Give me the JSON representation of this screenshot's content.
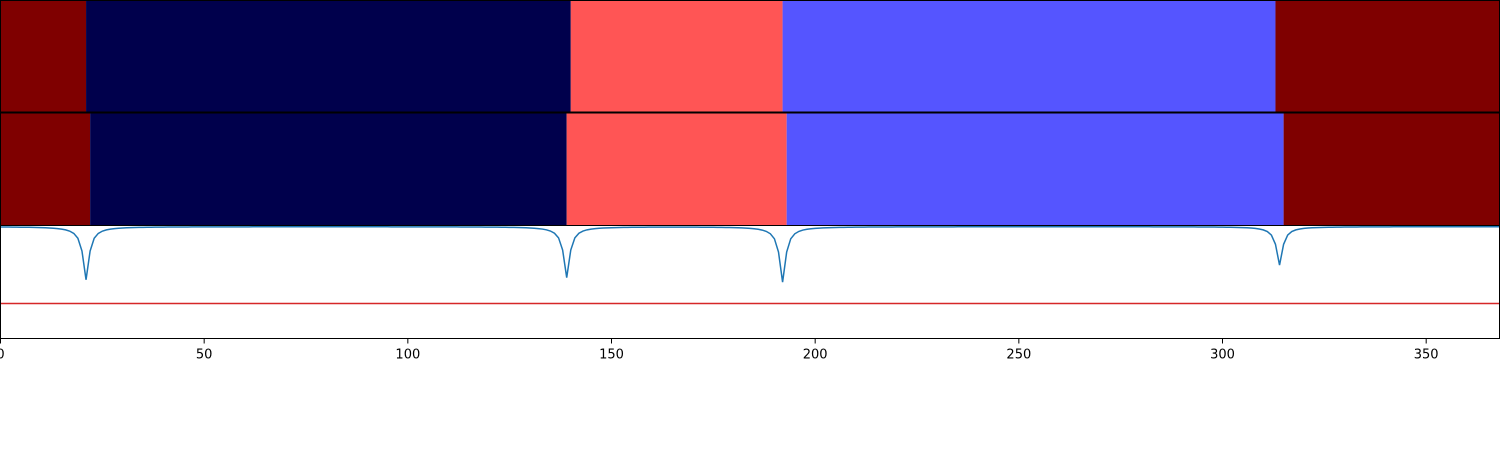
{
  "chart_data": {
    "type": "segmentation",
    "xlim": [
      0,
      368
    ],
    "x_ticks": [
      0,
      50,
      100,
      150,
      200,
      250,
      300,
      350
    ],
    "colors": {
      "dark_red": "#7f0000",
      "navy": "#00004c",
      "salmon": "#ff5555",
      "blue": "#5555ff",
      "curve": "#1f77b4",
      "threshold": "#d62728"
    },
    "segment_rows": [
      {
        "segments": [
          {
            "start": 0,
            "end": 21,
            "color": "#7f0000"
          },
          {
            "start": 21,
            "end": 140,
            "color": "#00004c"
          },
          {
            "start": 140,
            "end": 192,
            "color": "#ff5555"
          },
          {
            "start": 192,
            "end": 313,
            "color": "#5555ff"
          },
          {
            "start": 313,
            "end": 368,
            "color": "#7f0000"
          }
        ]
      },
      {
        "segments": [
          {
            "start": 0,
            "end": 22,
            "color": "#7f0000"
          },
          {
            "start": 22,
            "end": 139,
            "color": "#00004c"
          },
          {
            "start": 139,
            "end": 193,
            "color": "#ff5555"
          },
          {
            "start": 193,
            "end": 315,
            "color": "#5555ff"
          },
          {
            "start": 315,
            "end": 368,
            "color": "#7f0000"
          }
        ]
      }
    ],
    "line_panel": {
      "ylim": [
        0,
        1
      ],
      "baseline": 0.99,
      "threshold": 0.31,
      "dips": [
        {
          "x": 21,
          "y": 0.52
        },
        {
          "x": 139,
          "y": 0.54
        },
        {
          "x": 192,
          "y": 0.5
        },
        {
          "x": 314,
          "y": 0.65
        }
      ]
    }
  }
}
